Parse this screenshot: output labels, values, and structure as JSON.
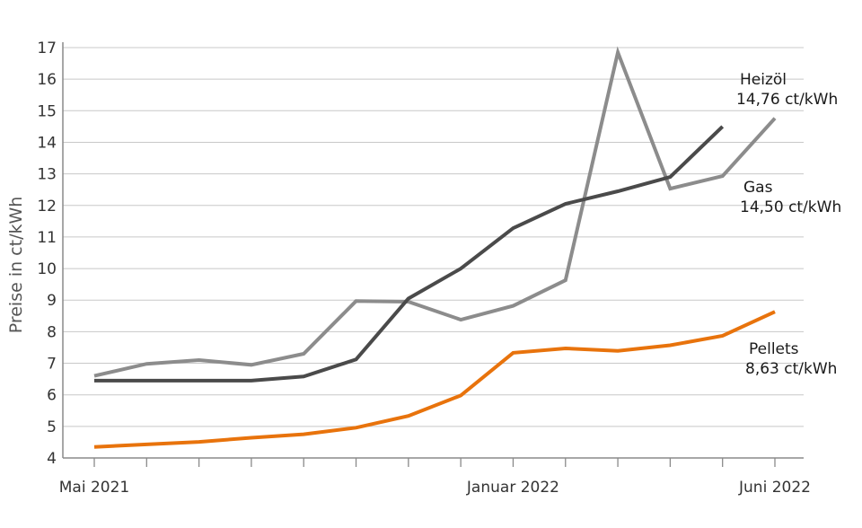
{
  "chart_data": {
    "type": "line",
    "title": "",
    "xlabel": "",
    "ylabel": "Preise in ct/kWh",
    "ylim": [
      4,
      17
    ],
    "yticks": [
      4,
      5,
      6,
      7,
      8,
      9,
      10,
      11,
      12,
      13,
      14,
      15,
      16,
      17
    ],
    "grid": "horizontal",
    "x": [
      "2021-05",
      "2021-06",
      "2021-07",
      "2021-08",
      "2021-09",
      "2021-10",
      "2021-11",
      "2021-12",
      "2022-01",
      "2022-02",
      "2022-03",
      "2022-04",
      "2022-05",
      "2022-06"
    ],
    "xtick_labels": [
      {
        "x": "2021-05",
        "label": "Mai 2021"
      },
      {
        "x": "2022-01",
        "label": "Januar 2022"
      },
      {
        "x": "2022-06",
        "label": "Juni 2022"
      }
    ],
    "series": [
      {
        "name": "Heizöl",
        "value_label": "14,76 ct/kWh",
        "color": "#8c8c8c",
        "values": [
          6.6,
          6.98,
          7.1,
          6.95,
          7.3,
          8.97,
          8.95,
          8.38,
          8.82,
          9.63,
          16.85,
          12.53,
          12.93,
          14.76
        ]
      },
      {
        "name": "Gas",
        "value_label": "14,50 ct/kWh",
        "color": "#4a4a4a",
        "values": [
          6.45,
          6.45,
          6.45,
          6.45,
          6.58,
          7.12,
          9.05,
          10.0,
          11.28,
          12.05,
          12.45,
          12.9,
          14.5,
          null
        ]
      },
      {
        "name": "Pellets",
        "value_label": "8,63 ct/kWh",
        "color": "#e8730c",
        "values": [
          4.35,
          4.43,
          4.51,
          4.64,
          4.75,
          4.96,
          5.33,
          5.98,
          7.33,
          7.47,
          7.39,
          7.57,
          7.87,
          8.63
        ]
      }
    ]
  }
}
